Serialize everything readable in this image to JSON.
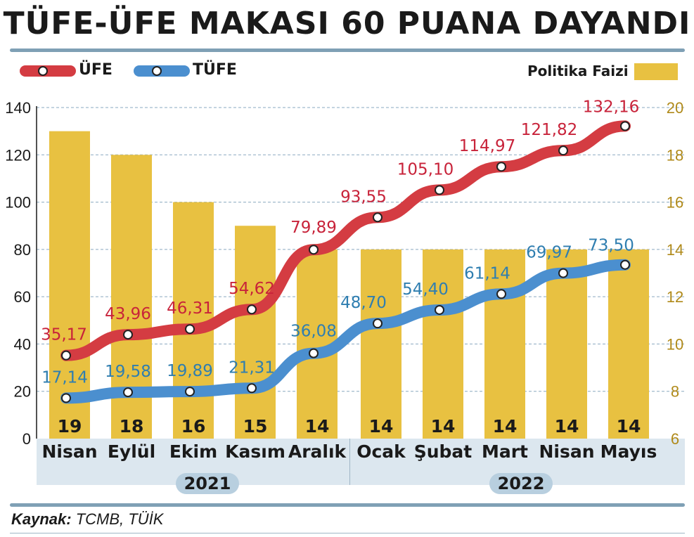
{
  "title": "TÜFE-ÜFE MAKASI 60 PUANA DAYANDI",
  "legend": {
    "ufe": "ÜFE",
    "tufe": "TÜFE",
    "policy": "Politika Faizi"
  },
  "years": [
    "2021",
    "2022"
  ],
  "source_label": "Kaynak:",
  "source_value": "TCMB, TÜİK",
  "colors": {
    "ufe": "#d43c42",
    "tufe": "#4b8fcf",
    "bar": "#e8c141",
    "ufe_text": "#c8233a",
    "tufe_text": "#2f7eb0",
    "right_axis": "#b08a1a"
  },
  "chart_data": {
    "type": "bar",
    "categories": [
      "Nisan",
      "Eylül",
      "Ekim",
      "Kasım",
      "Aralık",
      "Ocak",
      "Şubat",
      "Mart",
      "Nisan",
      "Mayıs"
    ],
    "series": [
      {
        "name": "Politika Faizi",
        "type": "bar",
        "axis": "right",
        "values": [
          19,
          18,
          16,
          15,
          14,
          14,
          14,
          14,
          14,
          14
        ],
        "labels": [
          "19",
          "18",
          "16",
          "15",
          "14",
          "14",
          "14",
          "14",
          "14",
          "14"
        ]
      },
      {
        "name": "ÜFE",
        "type": "line",
        "axis": "left",
        "values": [
          35.17,
          43.96,
          46.31,
          54.62,
          79.89,
          93.55,
          105.1,
          114.97,
          121.82,
          132.16
        ],
        "labels": [
          "35,17",
          "43,96",
          "46,31",
          "54,62",
          "79,89",
          "93,55",
          "105,10",
          "114,97",
          "121,82",
          "132,16"
        ]
      },
      {
        "name": "TÜFE",
        "type": "line",
        "axis": "left",
        "values": [
          17.14,
          19.58,
          19.89,
          21.31,
          36.08,
          48.7,
          54.4,
          61.14,
          69.97,
          73.5
        ],
        "labels": [
          "17,14",
          "19,58",
          "19,89",
          "21,31",
          "36,08",
          "48,70",
          "54,40",
          "61,14",
          "69,97",
          "73,50"
        ]
      }
    ],
    "y_left": {
      "min": 0,
      "max": 140,
      "ticks": [
        "0",
        "20",
        "40",
        "60",
        "80",
        "100",
        "120",
        "140"
      ]
    },
    "y_right": {
      "min": 6,
      "max": 20,
      "ticks": [
        "6",
        "8",
        "10",
        "12",
        "14",
        "16",
        "18",
        "20"
      ]
    },
    "grid": true
  }
}
